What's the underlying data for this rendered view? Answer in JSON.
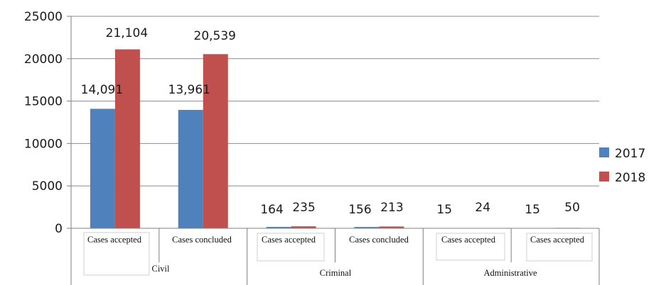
{
  "chart_data": {
    "type": "bar",
    "categories": [
      "Cases accepted",
      "Cases concluded",
      "Cases accepted",
      "Cases concluded",
      "Cases accepted",
      "Cases accepted"
    ],
    "groups": [
      {
        "label": "Civil",
        "span": [
          0,
          1
        ]
      },
      {
        "label": "Criminal",
        "span": [
          2,
          3
        ]
      },
      {
        "label": "Administrative",
        "span": [
          4,
          5
        ]
      }
    ],
    "series": [
      {
        "name": "2017",
        "color": "#4f81bd",
        "values": [
          14091,
          13961,
          164,
          156,
          15,
          15
        ],
        "labels": [
          "14,091",
          "13,961",
          "164",
          "156",
          "15",
          "15"
        ]
      },
      {
        "name": "2018",
        "color": "#c0504d",
        "values": [
          21104,
          20539,
          235,
          213,
          24,
          50
        ],
        "labels": [
          "21,104",
          "20,539",
          "235",
          "213",
          "24",
          "50"
        ]
      }
    ],
    "ylim": [
      0,
      25000
    ],
    "yticks": [
      "0",
      "5000",
      "10000",
      "15000",
      "20000",
      "25000"
    ],
    "grid": true,
    "legend": "right"
  }
}
